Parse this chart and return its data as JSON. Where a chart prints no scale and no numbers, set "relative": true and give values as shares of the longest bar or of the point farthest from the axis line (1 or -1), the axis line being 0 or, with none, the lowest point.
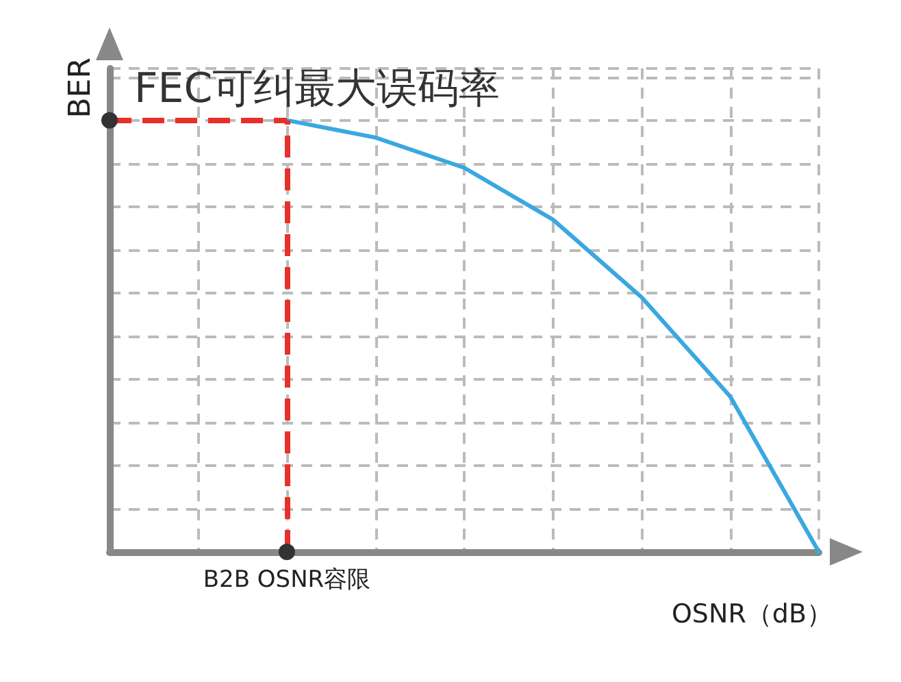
{
  "chart_data": {
    "type": "line",
    "relative": true,
    "xlabel": "OSNR（dB）",
    "ylabel": "BER",
    "categories": [
      null,
      null,
      null,
      null,
      null,
      null,
      null
    ],
    "series": [
      {
        "color": "#3aa8e0",
        "values": [
          1,
          0.96,
          0.89,
          0.77,
          0.59,
          0.36,
          0
        ]
      }
    ],
    "ref_lines": [
      {
        "axis": "y",
        "value": 1,
        "label": "FEC可纠最大误码率",
        "color": "#e8302a",
        "line_style": "dashed"
      },
      {
        "axis": "x",
        "label": "B2B OSNR容限",
        "color": "#e8302a",
        "line_style": "dashed"
      }
    ],
    "grid": true,
    "marker": "none",
    "line_style": "solid"
  }
}
